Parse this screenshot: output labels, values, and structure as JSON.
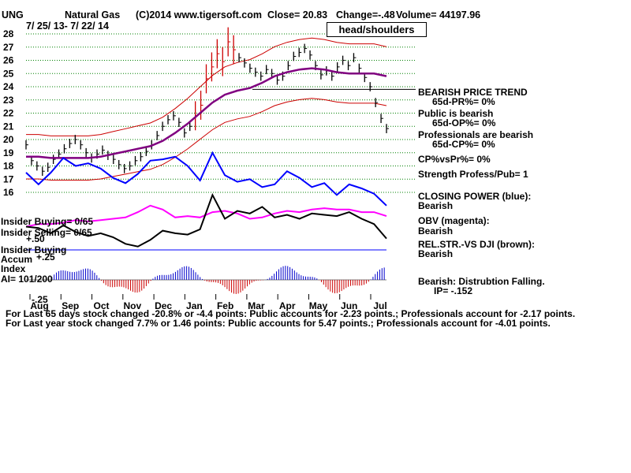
{
  "header": {
    "symbol": "UNG",
    "name": "Natural Gas",
    "copyright": "(C)2014 www.tigersoft.com",
    "close": "Close=  20.83",
    "change": "Change=-.48",
    "volume": "Volume= 44197.96",
    "date_range": "7/ 25/ 13- 7/ 22/ 14"
  },
  "annotation": "head/shoulders",
  "left_labels": {
    "insider_buying": "Insider Buying= 0/65",
    "insider_selling": "Insider Selling= 0/65",
    "plus50": "+.50",
    "insider_buying2": "Insider Buying",
    "accum": "Accum",
    "plus25": "+.25",
    "index": "Index",
    "ai": "AI= 101/200",
    "minus25": "-.25"
  },
  "right_panel": {
    "bearish_trend": "BEARISH PRICE TREND",
    "pr": "65d-PR%= 0%",
    "public_bearish": "Public is bearish",
    "op": "65d-OP%= 0%",
    "prof_bearish": "Professionals are bearish",
    "cp": "65d-CP%= 0%",
    "cpvspr": "CP%vsPr%=  0%",
    "strength": "Strength Profess/Pub= 1",
    "closing_power": "CLOSING POWER (blue):",
    "cp_state": "Bearish",
    "obv": "OBV (magenta):",
    "obv_state": "Bearish",
    "relstr": "REL.STR.-VS DJI (brown):",
    "relstr_state": "Bearish",
    "distribution": "Bearish: Distrubtion Falling.",
    "ip": "IP= -.152"
  },
  "footer": {
    "line1": "For Last 65 days stock changed -20.8% or -4.4 points:  Public accounts for -2.23 points.;  Professionals account for -2.17 points.",
    "line2": "For Last year stock changed  7.7% or  1.46 points:  Public accounts for  5.47 points.;  Professionals account for -4.01 points."
  },
  "colors": {
    "price": "#000000",
    "spike": "#cc0000",
    "band": "#cc0000",
    "ma": "#800080",
    "closing_power": "#0000ff",
    "obv": "#ff00ff",
    "relstr": "#000000",
    "accum_pos": "#0000cc",
    "accum_neg": "#cc0000",
    "grid": "#008000",
    "trendline": "#000000"
  },
  "chart_data": {
    "type": "line",
    "x_labels": [
      "Aug",
      "Sep",
      "Oct",
      "Nov",
      "Dec",
      "Jan",
      "Feb",
      "Mar",
      "Apr",
      "May",
      "Jun",
      "Jul"
    ],
    "y_ticks": [
      28,
      27,
      26,
      25,
      24,
      23,
      22,
      21,
      20,
      19,
      18,
      17,
      16
    ],
    "ylim": [
      15.3,
      28.2
    ],
    "grid": true,
    "series": [
      {
        "key": "price",
        "values": [
          19.6,
          18.4,
          18.0,
          17.6,
          17.9,
          18.5,
          18.9,
          19.3,
          19.7,
          20.0,
          19.6,
          19.0,
          18.6,
          18.9,
          19.2,
          18.8,
          18.5,
          18.1,
          17.8,
          18.0,
          18.4,
          18.7,
          19.1,
          19.6,
          20.3,
          21.0,
          21.5,
          21.8,
          21.3,
          20.5,
          21.0,
          21.8,
          22.6,
          24.6,
          25.5,
          26.5,
          25.9,
          27.4,
          26.8,
          26.2,
          25.8,
          25.4,
          25.1,
          24.8,
          25.3,
          25.0,
          24.5,
          24.8,
          25.6,
          26.3,
          26.6,
          26.9,
          26.4,
          25.6,
          24.9,
          25.2,
          24.8,
          25.5,
          26.0,
          25.6,
          26.2,
          25.4,
          24.7,
          24.0,
          22.8,
          21.6,
          20.83
        ]
      },
      {
        "key": "ma",
        "values": [
          18.7,
          18.7,
          18.6,
          18.6,
          18.6,
          18.6,
          18.7,
          18.9,
          19.1,
          19.3,
          19.5,
          19.9,
          20.5,
          21.2,
          22.0,
          22.8,
          23.4,
          23.7,
          23.9,
          24.3,
          24.8,
          25.1,
          25.3,
          25.4,
          25.3,
          25.1,
          25.0,
          25.0,
          25.0,
          24.8
        ]
      },
      {
        "key": "closing_power",
        "values": [
          17.5,
          16.6,
          17.5,
          18.6,
          18.0,
          18.2,
          17.8,
          17.1,
          16.7,
          17.4,
          18.4,
          18.5,
          18.7,
          18.0,
          16.9,
          19.0,
          17.3,
          16.8,
          17.0,
          16.4,
          16.6,
          17.6,
          17.1,
          16.4,
          16.7,
          15.8,
          16.6,
          16.3,
          15.9,
          15.0
        ]
      },
      {
        "key": "obv",
        "values": [
          13.4,
          13.6,
          13.6,
          13.7,
          13.9,
          13.8,
          13.9,
          14.0,
          14.1,
          14.5,
          15.0,
          14.7,
          14.1,
          14.2,
          14.1,
          14.5,
          14.6,
          14.4,
          14.0,
          14.1,
          14.4,
          14.6,
          14.5,
          14.7,
          14.8,
          14.7,
          14.7,
          14.5,
          14.5,
          14.2
        ]
      },
      {
        "key": "relstr",
        "values": [
          13.4,
          13.3,
          12.9,
          13.5,
          13.0,
          12.7,
          12.9,
          12.6,
          12.1,
          11.9,
          12.4,
          13.1,
          12.9,
          12.8,
          13.2,
          15.8,
          14.0,
          14.6,
          14.4,
          14.9,
          14.1,
          14.3,
          14.0,
          14.4,
          14.3,
          14.2,
          14.5,
          14.0,
          13.6,
          12.5
        ]
      }
    ]
  }
}
